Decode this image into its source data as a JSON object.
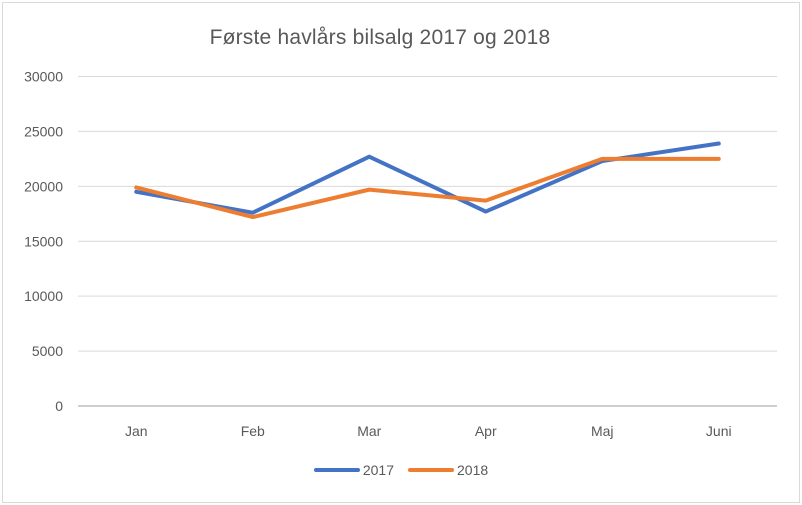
{
  "chart_data": {
    "type": "line",
    "title": "Første havlårs bilsalg 2017 og 2018",
    "categories": [
      "Jan",
      "Feb",
      "Mar",
      "Apr",
      "Maj",
      "Juni"
    ],
    "series": [
      {
        "name": "2017",
        "color": "#4472C4",
        "values": [
          19500,
          17600,
          22700,
          17700,
          22300,
          23900
        ]
      },
      {
        "name": "2018",
        "color": "#ED7D31",
        "values": [
          19900,
          17200,
          19700,
          18700,
          22500,
          22500
        ]
      }
    ],
    "xlabel": "",
    "ylabel": "",
    "ylim": [
      0,
      30000
    ],
    "ytick_step": 5000,
    "ytick_labels": [
      "0",
      "5000",
      "10000",
      "15000",
      "20000",
      "25000",
      "30000"
    ],
    "grid": true,
    "gridline_color": "#d9d9d9",
    "axis_line_color": "#bfbfbf",
    "text_color": "#595959",
    "legend_position": "bottom"
  }
}
